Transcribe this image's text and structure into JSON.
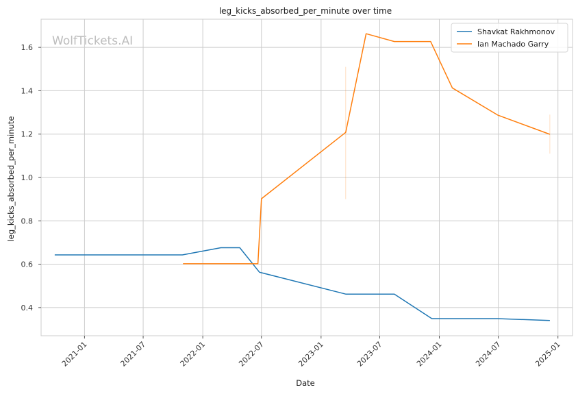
{
  "chart_data": {
    "type": "line",
    "title": "leg_kicks_absorbed_per_minute over time",
    "xlabel": "Date",
    "ylabel": "leg_kicks_absorbed_per_minute",
    "watermark": "WolfTickets.AI",
    "xlim": [
      "2020-08-20",
      "2025-02-15"
    ],
    "ylim": [
      0.27,
      1.73
    ],
    "x_ticks": [
      "2021-01",
      "2021-07",
      "2022-01",
      "2022-07",
      "2023-01",
      "2023-07",
      "2024-01",
      "2024-07",
      "2025-01"
    ],
    "y_ticks": [
      0.4,
      0.6,
      0.8,
      1.0,
      1.2,
      1.4,
      1.6
    ],
    "grid": true,
    "legend_position": "top-right",
    "series": [
      {
        "name": "Shavkat Rakhmonov",
        "color": "#1f77b4",
        "points": [
          {
            "x": "2020-10-01",
            "y": 0.643
          },
          {
            "x": "2021-10-30",
            "y": 0.643
          },
          {
            "x": "2022-02-26",
            "y": 0.676
          },
          {
            "x": "2022-04-25",
            "y": 0.676
          },
          {
            "x": "2022-06-25",
            "y": 0.563
          },
          {
            "x": "2023-03-18",
            "y": 0.462
          },
          {
            "x": "2023-08-15",
            "y": 0.462
          },
          {
            "x": "2023-12-09",
            "y": 0.349
          },
          {
            "x": "2024-06-29",
            "y": 0.349
          },
          {
            "x": "2024-12-07",
            "y": 0.34
          }
        ]
      },
      {
        "name": "Ian Machado Garry",
        "color": "#ff7f0e",
        "points": [
          {
            "x": "2021-11-01",
            "y": 0.602
          },
          {
            "x": "2022-06-20",
            "y": 0.602
          },
          {
            "x": "2022-07-01",
            "y": 0.902
          },
          {
            "x": "2023-03-18",
            "y": 1.208
          },
          {
            "x": "2023-05-20",
            "y": 1.663
          },
          {
            "x": "2023-08-15",
            "y": 1.627
          },
          {
            "x": "2023-12-05",
            "y": 1.627
          },
          {
            "x": "2024-02-10",
            "y": 1.413
          },
          {
            "x": "2024-06-29",
            "y": 1.288
          },
          {
            "x": "2024-12-07",
            "y": 1.199
          }
        ],
        "error_bars": [
          {
            "x": "2023-03-18",
            "low": 0.9,
            "high": 1.51
          },
          {
            "x": "2024-12-07",
            "low": 1.11,
            "high": 1.29
          }
        ]
      }
    ]
  }
}
